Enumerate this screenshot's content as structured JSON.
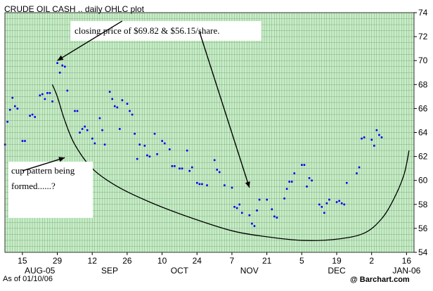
{
  "chart_data": {
    "type": "scatter",
    "title": "CRUDE OIL CASH .. daily OHLC plot",
    "ylim": [
      54,
      74
    ],
    "y_ticks": [
      54,
      56,
      58,
      60,
      62,
      64,
      66,
      68,
      70,
      72,
      74
    ],
    "x_ticks": [
      {
        "label": "15",
        "date": "2005-08-15"
      },
      {
        "label": "29",
        "date": "2005-08-29"
      },
      {
        "label": "12",
        "date": "2005-09-12"
      },
      {
        "label": "26",
        "date": "2005-09-26"
      },
      {
        "label": "10",
        "date": "2005-10-10"
      },
      {
        "label": "24",
        "date": "2005-10-24"
      },
      {
        "label": "7",
        "date": "2005-11-07"
      },
      {
        "label": "21",
        "date": "2005-11-21"
      },
      {
        "label": "5",
        "date": "2005-12-05"
      },
      {
        "label": "19",
        "date": "2005-12-19"
      },
      {
        "label": "2",
        "date": "2006-01-02"
      },
      {
        "label": "16",
        "date": "2006-01-16"
      }
    ],
    "month_labels": [
      {
        "label": "AUG-05",
        "date": "2005-08-22"
      },
      {
        "label": "SEP",
        "date": "2005-09-19"
      },
      {
        "label": "OCT",
        "date": "2005-10-17"
      },
      {
        "label": "NOV",
        "date": "2005-11-14"
      },
      {
        "label": "DEC",
        "date": "2005-12-19"
      },
      {
        "label": "JAN-06",
        "date": "2006-01-16"
      }
    ],
    "series": [
      {
        "points": [
          {
            "x": "2005-08-08",
            "y": 63.0
          },
          {
            "x": "2005-08-09",
            "y": 64.9
          },
          {
            "x": "2005-08-10",
            "y": 65.9
          },
          {
            "x": "2005-08-11",
            "y": 66.9
          },
          {
            "x": "2005-08-12",
            "y": 66.2
          },
          {
            "x": "2005-08-13",
            "y": 66.0
          },
          {
            "x": "2005-08-15",
            "y": 63.3
          },
          {
            "x": "2005-08-16",
            "y": 63.3
          },
          {
            "x": "2005-08-18",
            "y": 65.4
          },
          {
            "x": "2005-08-19",
            "y": 65.5
          },
          {
            "x": "2005-08-20",
            "y": 65.3
          },
          {
            "x": "2005-08-22",
            "y": 67.1
          },
          {
            "x": "2005-08-23",
            "y": 67.2
          },
          {
            "x": "2005-08-24",
            "y": 66.8
          },
          {
            "x": "2005-08-25",
            "y": 67.3
          },
          {
            "x": "2005-08-26",
            "y": 67.3
          },
          {
            "x": "2005-08-27",
            "y": 66.6
          },
          {
            "x": "2005-08-29",
            "y": 69.8
          },
          {
            "x": "2005-08-30",
            "y": 69.0
          },
          {
            "x": "2005-08-31",
            "y": 69.6
          },
          {
            "x": "2005-09-01",
            "y": 69.5
          },
          {
            "x": "2005-09-02",
            "y": 67.5
          },
          {
            "x": "2005-09-05",
            "y": 65.8
          },
          {
            "x": "2005-09-06",
            "y": 65.8
          },
          {
            "x": "2005-09-07",
            "y": 64.0
          },
          {
            "x": "2005-09-08",
            "y": 64.3
          },
          {
            "x": "2005-09-09",
            "y": 64.5
          },
          {
            "x": "2005-09-10",
            "y": 64.2
          },
          {
            "x": "2005-09-12",
            "y": 63.5
          },
          {
            "x": "2005-09-13",
            "y": 63.1
          },
          {
            "x": "2005-09-15",
            "y": 65.2
          },
          {
            "x": "2005-09-16",
            "y": 64.2
          },
          {
            "x": "2005-09-17",
            "y": 63.0
          },
          {
            "x": "2005-09-19",
            "y": 67.4
          },
          {
            "x": "2005-09-20",
            "y": 66.8
          },
          {
            "x": "2005-09-21",
            "y": 66.2
          },
          {
            "x": "2005-09-22",
            "y": 66.1
          },
          {
            "x": "2005-09-23",
            "y": 64.3
          },
          {
            "x": "2005-09-24",
            "y": 66.7
          },
          {
            "x": "2005-09-26",
            "y": 66.4
          },
          {
            "x": "2005-09-27",
            "y": 65.8
          },
          {
            "x": "2005-09-28",
            "y": 65.5
          },
          {
            "x": "2005-09-29",
            "y": 63.9
          },
          {
            "x": "2005-09-30",
            "y": 61.8
          },
          {
            "x": "2005-10-01",
            "y": 63.0
          },
          {
            "x": "2005-10-03",
            "y": 62.9
          },
          {
            "x": "2005-10-04",
            "y": 62.1
          },
          {
            "x": "2005-10-05",
            "y": 62.0
          },
          {
            "x": "2005-10-07",
            "y": 63.9
          },
          {
            "x": "2005-10-08",
            "y": 62.2
          },
          {
            "x": "2005-10-10",
            "y": 63.3
          },
          {
            "x": "2005-10-11",
            "y": 63.1
          },
          {
            "x": "2005-10-13",
            "y": 62.6
          },
          {
            "x": "2005-10-14",
            "y": 61.2
          },
          {
            "x": "2005-10-15",
            "y": 61.2
          },
          {
            "x": "2005-10-17",
            "y": 61.0
          },
          {
            "x": "2005-10-18",
            "y": 61.0
          },
          {
            "x": "2005-10-20",
            "y": 62.5
          },
          {
            "x": "2005-10-21",
            "y": 60.8
          },
          {
            "x": "2005-10-22",
            "y": 61.1
          },
          {
            "x": "2005-10-24",
            "y": 59.8
          },
          {
            "x": "2005-10-25",
            "y": 59.7
          },
          {
            "x": "2005-10-26",
            "y": 59.7
          },
          {
            "x": "2005-10-28",
            "y": 59.6
          },
          {
            "x": "2005-10-31",
            "y": 61.7
          },
          {
            "x": "2005-11-01",
            "y": 60.9
          },
          {
            "x": "2005-11-02",
            "y": 60.7
          },
          {
            "x": "2005-11-04",
            "y": 59.6
          },
          {
            "x": "2005-11-07",
            "y": 59.4
          },
          {
            "x": "2005-11-08",
            "y": 57.8
          },
          {
            "x": "2005-11-09",
            "y": 57.7
          },
          {
            "x": "2005-11-10",
            "y": 58.0
          },
          {
            "x": "2005-11-11",
            "y": 57.3
          },
          {
            "x": "2005-11-14",
            "y": 57.1
          },
          {
            "x": "2005-11-15",
            "y": 56.4
          },
          {
            "x": "2005-11-16",
            "y": 56.2
          },
          {
            "x": "2005-11-17",
            "y": 57.5
          },
          {
            "x": "2005-11-18",
            "y": 58.4
          },
          {
            "x": "2005-11-21",
            "y": 58.4
          },
          {
            "x": "2005-11-23",
            "y": 57.6
          },
          {
            "x": "2005-11-24",
            "y": 57.0
          },
          {
            "x": "2005-11-25",
            "y": 56.9
          },
          {
            "x": "2005-11-28",
            "y": 58.5
          },
          {
            "x": "2005-11-29",
            "y": 59.3
          },
          {
            "x": "2005-11-30",
            "y": 59.9
          },
          {
            "x": "2005-12-01",
            "y": 59.9
          },
          {
            "x": "2005-12-02",
            "y": 60.6
          },
          {
            "x": "2005-12-05",
            "y": 61.3
          },
          {
            "x": "2005-12-06",
            "y": 61.3
          },
          {
            "x": "2005-12-07",
            "y": 59.5
          },
          {
            "x": "2005-12-08",
            "y": 60.2
          },
          {
            "x": "2005-12-09",
            "y": 60.0
          },
          {
            "x": "2005-12-12",
            "y": 58.0
          },
          {
            "x": "2005-12-13",
            "y": 57.8
          },
          {
            "x": "2005-12-14",
            "y": 57.3
          },
          {
            "x": "2005-12-15",
            "y": 58.1
          },
          {
            "x": "2005-12-16",
            "y": 58.4
          },
          {
            "x": "2005-12-19",
            "y": 58.2
          },
          {
            "x": "2005-12-20",
            "y": 58.3
          },
          {
            "x": "2005-12-21",
            "y": 58.1
          },
          {
            "x": "2005-12-22",
            "y": 58.0
          },
          {
            "x": "2005-12-23",
            "y": 59.8
          },
          {
            "x": "2005-12-27",
            "y": 60.6
          },
          {
            "x": "2005-12-28",
            "y": 61.1
          },
          {
            "x": "2005-12-29",
            "y": 63.5
          },
          {
            "x": "2005-12-30",
            "y": 63.6
          },
          {
            "x": "2006-01-02",
            "y": 63.4
          },
          {
            "x": "2006-01-03",
            "y": 62.9
          },
          {
            "x": "2006-01-04",
            "y": 64.2
          },
          {
            "x": "2006-01-05",
            "y": 63.8
          },
          {
            "x": "2006-01-06",
            "y": 63.6
          }
        ]
      }
    ],
    "cup_curve": [
      {
        "x": "2005-08-27",
        "y": 68.0
      },
      {
        "x": "2005-08-29",
        "y": 67.0
      },
      {
        "x": "2005-09-01",
        "y": 65.0
      },
      {
        "x": "2005-09-05",
        "y": 63.0
      },
      {
        "x": "2005-09-12",
        "y": 61.0
      },
      {
        "x": "2005-09-22",
        "y": 59.5
      },
      {
        "x": "2005-10-05",
        "y": 58.2
      },
      {
        "x": "2005-10-20",
        "y": 57.0
      },
      {
        "x": "2005-11-07",
        "y": 55.8
      },
      {
        "x": "2005-11-21",
        "y": 55.3
      },
      {
        "x": "2005-12-05",
        "y": 55.0
      },
      {
        "x": "2005-12-19",
        "y": 55.1
      },
      {
        "x": "2005-12-30",
        "y": 55.6
      },
      {
        "x": "2006-01-06",
        "y": 56.8
      },
      {
        "x": "2006-01-11",
        "y": 58.5
      },
      {
        "x": "2006-01-15",
        "y": 60.5
      },
      {
        "x": "2006-01-17",
        "y": 62.5
      }
    ],
    "annotations": [
      {
        "text": "closing price of $69.82 & $56.15/share.",
        "from": {
          "x": "2005-09-24",
          "y": 73.3
        },
        "to": {
          "x": "2005-08-29",
          "y": 70.0
        }
      },
      {
        "text": "closing price of $69.82 & $56.15/share.",
        "from": {
          "x": "2005-10-25",
          "y": 72.4
        },
        "to": {
          "x": "2005-11-14",
          "y": 59.4
        }
      },
      {
        "text": "cup pattern being formed......?",
        "from": {
          "x": "2005-08-15",
          "y": 60.8
        },
        "to": {
          "x": "2005-09-01",
          "y": 61.9
        }
      }
    ],
    "grid": true,
    "as_of": "As of 01/10/06",
    "source": "@ Barchart.com"
  },
  "colors": {
    "plot_background": "#c6eec6",
    "grid_line": "#86aa86",
    "data_points": "#0000ee"
  }
}
